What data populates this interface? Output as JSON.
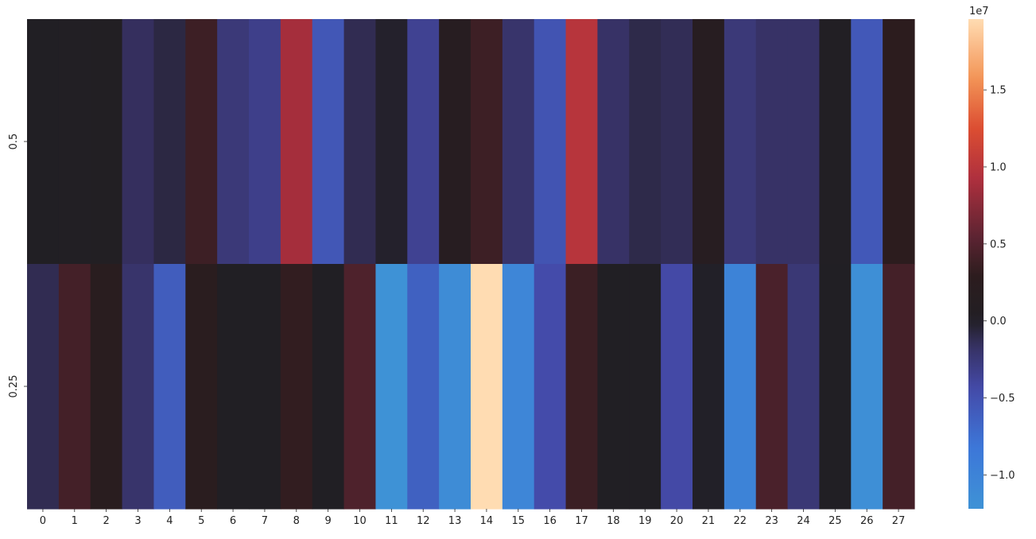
{
  "chart_data": {
    "type": "heatmap",
    "title": "",
    "xlabel": "",
    "ylabel": "",
    "x_categories": [
      "0",
      "1",
      "2",
      "3",
      "4",
      "5",
      "6",
      "7",
      "8",
      "9",
      "10",
      "11",
      "12",
      "13",
      "14",
      "15",
      "16",
      "17",
      "18",
      "19",
      "20",
      "21",
      "22",
      "23",
      "24",
      "25",
      "26",
      "27"
    ],
    "y_categories": [
      "0.5",
      "0.25"
    ],
    "values": [
      [
        0,
        200000,
        300000,
        -1500000,
        -800000,
        3800000,
        -2500000,
        -3200000,
        8800000,
        -5500000,
        -1200000,
        -200000,
        -3500000,
        1500000,
        3800000,
        -2000000,
        -5200000,
        9800000,
        -1800000,
        -1000000,
        -1300000,
        1500000,
        -2500000,
        -1800000,
        -1800000,
        200000,
        -5600000,
        2800000
      ],
      [
        -1200000,
        4200000,
        2200000,
        -2000000,
        -6000000,
        2400000,
        0,
        0,
        3200000,
        100000,
        4700000,
        -12200000,
        -6300000,
        -11300000,
        19600000,
        -10400000,
        -4500000,
        3700000,
        0,
        0,
        -4300000,
        -100000,
        -10000000,
        4500000,
        -2400000,
        0,
        -11800000,
        4200000
      ]
    ],
    "colorbar": {
      "min": -12200000,
      "max": 19600000,
      "center": 0,
      "colormap": "icefire",
      "tick_values": [
        -10000000,
        -5000000,
        0,
        5000000,
        10000000,
        15000000
      ],
      "tick_labels": [
        "−1.0",
        "−0.5",
        "0.0",
        "0.5",
        "1.0",
        "1.5"
      ],
      "offset_label": "1e7"
    },
    "grid": false,
    "legend": "colorbar right"
  }
}
